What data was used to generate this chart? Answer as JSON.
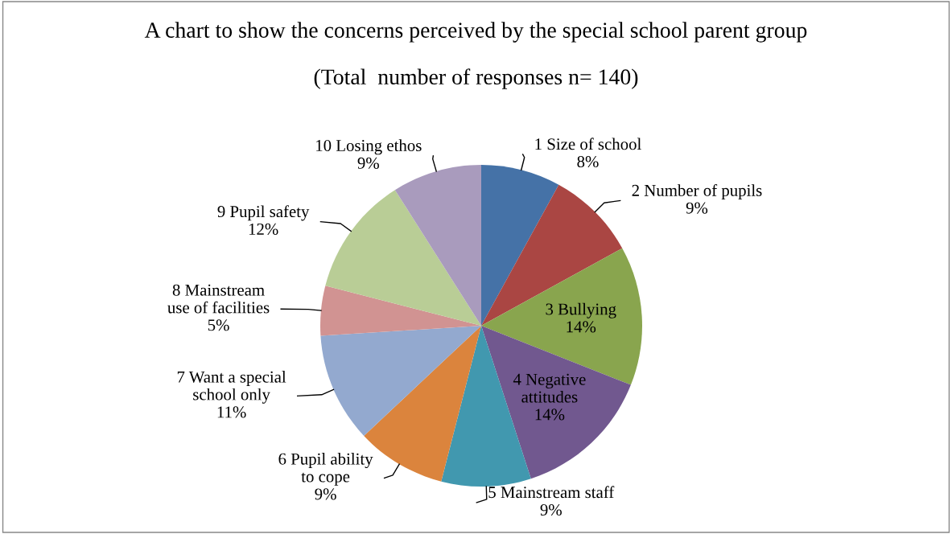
{
  "chart_data": {
    "type": "pie",
    "title": "A chart to show the concerns perceived by the special school parent group",
    "subtitle": "(Total  number of responses n= 140)",
    "categories": [
      "1 Size of school",
      "2 Number of pupils",
      "3 Bullying",
      "4 Negative\nattitudes",
      "5 Mainstream staff",
      "6 Pupil ability\nto cope",
      "7 Want a special\nschool only",
      "8 Mainstream\nuse of facilities",
      "9 Pupil safety",
      "10 Losing ethos"
    ],
    "values": [
      8,
      9,
      14,
      14,
      9,
      9,
      11,
      5,
      12,
      9
    ],
    "colors": [
      "#4572a7",
      "#aa4643",
      "#89a54e",
      "#71588f",
      "#4198af",
      "#db843d",
      "#93a9cf",
      "#d19392",
      "#b9cd96",
      "#a99bbd"
    ],
    "value_labels": [
      "8%",
      "9%",
      "14%",
      "14%",
      "9%",
      "9%",
      "11%",
      "5%",
      "12%",
      "9%"
    ],
    "legend": false
  }
}
